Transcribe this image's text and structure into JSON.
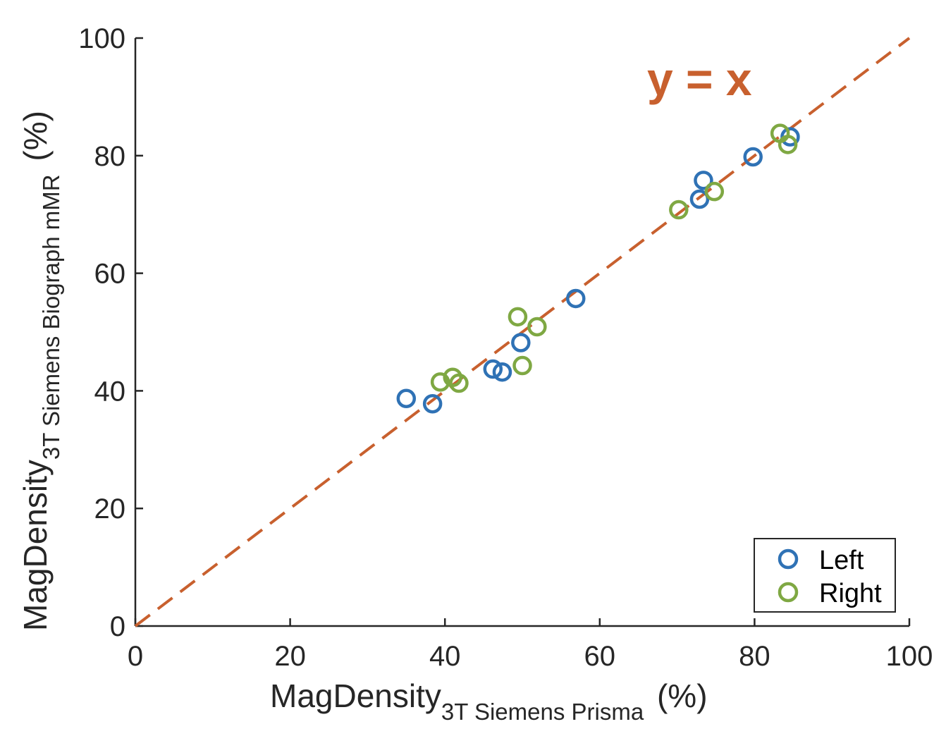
{
  "chart_data": {
    "type": "scatter",
    "xlim": [
      0,
      100
    ],
    "ylim": [
      0,
      100
    ],
    "xticks": [
      "0",
      "20",
      "40",
      "60",
      "80",
      "100"
    ],
    "yticks": [
      "0",
      "20",
      "40",
      "60",
      "80",
      "100"
    ],
    "xtick_values": [
      0,
      20,
      40,
      60,
      80,
      100
    ],
    "ytick_values": [
      0,
      20,
      40,
      60,
      80,
      100
    ],
    "xlabel": {
      "main": "MagDensity",
      "sub": "3T Siemens Prisma",
      "unit": " (%)"
    },
    "ylabel": {
      "main": "MagDensity",
      "sub": "3T Siemens Biograph mMR",
      "unit": " (%)"
    },
    "grid": false,
    "reference_line": {
      "label": "y = x",
      "x": [
        0,
        100
      ],
      "y": [
        0,
        100
      ],
      "color": "#C8602E",
      "style": "dashed"
    },
    "legend": {
      "placement": "bottom-right",
      "entries": [
        "Left",
        "Right"
      ]
    },
    "series": [
      {
        "name": "Left",
        "color": "#2F72B5",
        "points": [
          [
            35.0,
            38.7
          ],
          [
            38.4,
            37.8
          ],
          [
            46.2,
            43.7
          ],
          [
            47.4,
            43.2
          ],
          [
            49.8,
            48.2
          ],
          [
            56.9,
            55.7
          ],
          [
            72.9,
            72.6
          ],
          [
            73.4,
            75.8
          ],
          [
            79.8,
            79.8
          ],
          [
            84.6,
            83.2
          ]
        ]
      },
      {
        "name": "Right",
        "color": "#7FA843",
        "points": [
          [
            39.4,
            41.5
          ],
          [
            41.0,
            42.3
          ],
          [
            41.8,
            41.3
          ],
          [
            49.4,
            52.6
          ],
          [
            50.0,
            44.3
          ],
          [
            51.9,
            50.9
          ],
          [
            70.2,
            70.8
          ],
          [
            74.8,
            73.9
          ],
          [
            83.3,
            83.8
          ],
          [
            84.3,
            81.9
          ]
        ]
      }
    ]
  }
}
